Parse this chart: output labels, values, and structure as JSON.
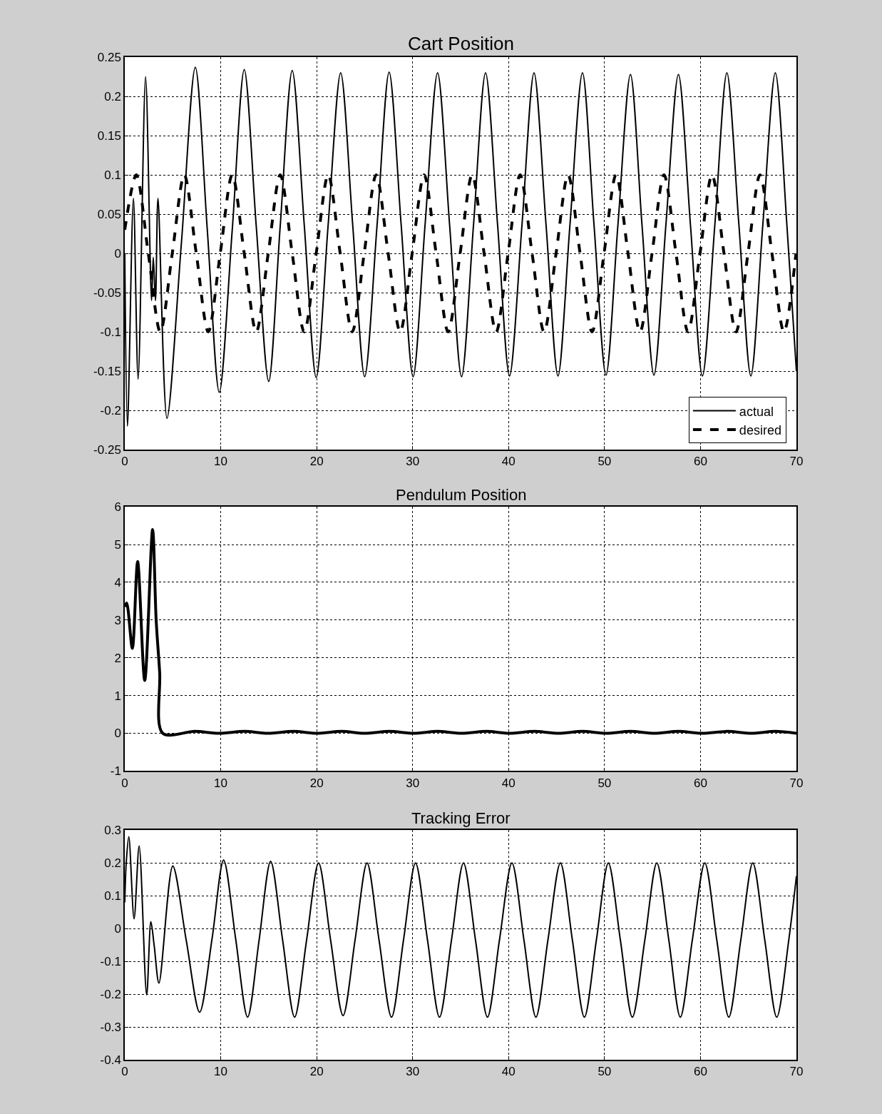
{
  "chart_data": [
    {
      "type": "line",
      "title": "Cart Position",
      "xlim": [
        0,
        70
      ],
      "xticks": [
        0,
        10,
        20,
        30,
        40,
        50,
        60,
        70
      ],
      "ylim": [
        -0.25,
        0.25
      ],
      "yticks": [
        -0.25,
        -0.2,
        -0.15,
        -0.1,
        -0.05,
        0,
        0.05,
        0.1,
        0.15,
        0.2,
        0.25
      ],
      "grid": true,
      "legend": "bottom right",
      "series": [
        {
          "name": "actual",
          "color": "#000000",
          "line_style": "solid",
          "x": [
            0,
            0.28,
            0.9,
            1.39,
            2.17,
            2.79,
            2.97,
            3.2,
            3.46,
            4.4,
            5.9,
            7.35,
            8.6,
            9.85,
            11.2,
            12.45,
            13.7,
            15.0,
            16.2,
            17.45,
            18.7,
            19.95,
            21.2,
            22.5,
            23.75,
            25.0,
            26.3,
            27.55,
            28.8,
            30.05,
            31.3,
            32.6,
            33.85,
            35.1,
            36.35,
            37.6,
            38.85,
            40.1,
            41.4,
            42.65,
            43.9,
            45.15,
            46.4,
            47.7,
            48.9,
            50.15,
            51.4,
            52.7,
            53.9,
            55.15,
            56.4,
            57.7,
            58.95,
            60.2,
            61.5,
            62.75,
            64.0,
            65.25,
            66.5,
            67.8,
            69.0,
            70
          ],
          "values": [
            0,
            -0.22,
            0.07,
            -0.16,
            0.225,
            -0.06,
            -0.005,
            -0.06,
            0.07,
            -0.21,
            0.013,
            0.237,
            0.03,
            -0.177,
            0.03,
            0.234,
            0.035,
            -0.163,
            0.035,
            0.233,
            0.037,
            -0.158,
            0.037,
            0.23,
            0.037,
            -0.157,
            0.037,
            0.231,
            0.037,
            -0.157,
            0.037,
            0.23,
            0.037,
            -0.157,
            0.037,
            0.23,
            0.037,
            -0.156,
            0.037,
            0.23,
            0.037,
            -0.156,
            0.037,
            0.23,
            0.037,
            -0.155,
            0.037,
            0.228,
            0.037,
            -0.155,
            0.037,
            0.228,
            0.037,
            -0.156,
            0.037,
            0.23,
            0.037,
            -0.156,
            0.037,
            0.23,
            0.037,
            -0.15
          ]
        },
        {
          "name": "desired",
          "color": "#000000",
          "line_style": "dashed",
          "x": [
            0,
            1.2,
            2.45,
            3.7,
            4.95,
            6.2,
            7.45,
            8.7,
            9.95,
            11.2,
            12.45,
            13.7,
            14.95,
            16.2,
            17.45,
            18.7,
            19.95,
            21.2,
            22.45,
            23.7,
            24.95,
            26.2,
            27.45,
            28.7,
            29.95,
            31.2,
            32.45,
            33.7,
            34.95,
            36.2,
            37.45,
            38.7,
            39.95,
            41.2,
            42.45,
            43.7,
            44.95,
            46.2,
            47.45,
            48.7,
            49.95,
            51.2,
            52.45,
            53.7,
            54.95,
            56.2,
            57.45,
            58.7,
            59.95,
            61.2,
            62.45,
            63.7,
            64.95,
            66.2,
            67.45,
            68.7,
            69.95
          ],
          "values": [
            0.03,
            0.1,
            0,
            -0.1,
            0,
            0.1,
            0,
            -0.1,
            0,
            0.1,
            0,
            -0.1,
            0,
            0.1,
            0,
            -0.1,
            0,
            0.1,
            0,
            -0.1,
            0,
            0.1,
            0,
            -0.1,
            0,
            0.1,
            0,
            -0.1,
            0,
            0.1,
            0,
            -0.1,
            0,
            0.1,
            0,
            -0.1,
            0,
            0.1,
            0,
            -0.1,
            0,
            0.1,
            0,
            -0.1,
            0,
            0.1,
            0,
            -0.1,
            0,
            0.1,
            0,
            -0.1,
            0,
            0.1,
            0,
            -0.1,
            0
          ]
        }
      ]
    },
    {
      "type": "line",
      "title": "Pendulum Position",
      "xlim": [
        0,
        70
      ],
      "xticks": [
        0,
        10,
        20,
        30,
        40,
        50,
        60,
        70
      ],
      "ylim": [
        -1,
        6
      ],
      "yticks": [
        -1,
        0,
        1,
        2,
        3,
        4,
        5,
        6
      ],
      "grid": true,
      "series": [
        {
          "color": "#000000",
          "line_style": "solid",
          "x": [
            0,
            0.2,
            0.79,
            1.34,
            2.08,
            2.9,
            3.27,
            3.64,
            3.96,
            7.3,
            9.8,
            12.5,
            14.9,
            17.6,
            20.0,
            22.6,
            25.0,
            27.6,
            30.1,
            32.6,
            35.1,
            37.7,
            40.1,
            42.7,
            45.2,
            47.7,
            50.2,
            52.7,
            55.2,
            57.7,
            60.2,
            62.8,
            65.3,
            67.8,
            70
          ],
          "values": [
            3.35,
            3.45,
            2.25,
            4.55,
            1.4,
            5.4,
            3.0,
            1.6,
            0,
            0.05,
            0,
            0.05,
            0,
            0.05,
            0,
            0.05,
            0,
            0.05,
            0,
            0.05,
            0,
            0.05,
            0,
            0.05,
            0,
            0.05,
            0,
            0.05,
            0,
            0.05,
            0,
            0.05,
            0,
            0.05,
            0
          ]
        }
      ]
    },
    {
      "type": "line",
      "title": "Tracking Error",
      "xlim": [
        0,
        70
      ],
      "xticks": [
        0,
        10,
        20,
        30,
        40,
        50,
        60,
        70
      ],
      "ylim": [
        -0.4,
        0.3
      ],
      "yticks": [
        -0.4,
        -0.3,
        -0.2,
        -0.1,
        0,
        0.1,
        0.2,
        0.3
      ],
      "grid": true,
      "series": [
        {
          "color": "#000000",
          "line_style": "solid",
          "x": [
            0,
            0.15,
            0.42,
            0.97,
            1.5,
            2.28,
            2.72,
            3.07,
            3.56,
            5.0,
            6.4,
            7.8,
            9.1,
            10.3,
            11.55,
            12.8,
            14.0,
            15.2,
            16.45,
            17.7,
            18.95,
            20.2,
            21.45,
            22.75,
            24.0,
            25.25,
            26.5,
            27.8,
            29.05,
            30.3,
            31.55,
            32.8,
            34.05,
            35.3,
            36.55,
            37.8,
            39.05,
            40.35,
            41.6,
            42.85,
            44.1,
            45.4,
            46.65,
            47.9,
            49.15,
            50.4,
            51.65,
            52.9,
            54.2,
            55.45,
            56.7,
            57.9,
            59.15,
            60.45,
            61.7,
            62.95,
            64.2,
            65.45,
            66.7,
            67.95,
            69.2,
            70
          ],
          "values": [
            0.08,
            0.2,
            0.28,
            0.03,
            0.252,
            -0.202,
            0.021,
            -0.053,
            -0.166,
            0.191,
            -0.035,
            -0.255,
            -0.03,
            0.209,
            -0.03,
            -0.27,
            -0.035,
            0.205,
            -0.035,
            -0.27,
            -0.035,
            0.2,
            -0.035,
            -0.265,
            -0.035,
            0.2,
            -0.035,
            -0.27,
            -0.035,
            0.2,
            -0.035,
            -0.27,
            -0.035,
            0.2,
            -0.035,
            -0.27,
            -0.035,
            0.2,
            -0.035,
            -0.27,
            -0.035,
            0.2,
            -0.035,
            -0.27,
            -0.035,
            0.2,
            -0.035,
            -0.27,
            -0.035,
            0.2,
            -0.035,
            -0.27,
            -0.035,
            0.2,
            -0.035,
            -0.27,
            -0.035,
            0.2,
            -0.035,
            -0.27,
            -0.035,
            0.16
          ]
        }
      ]
    }
  ]
}
